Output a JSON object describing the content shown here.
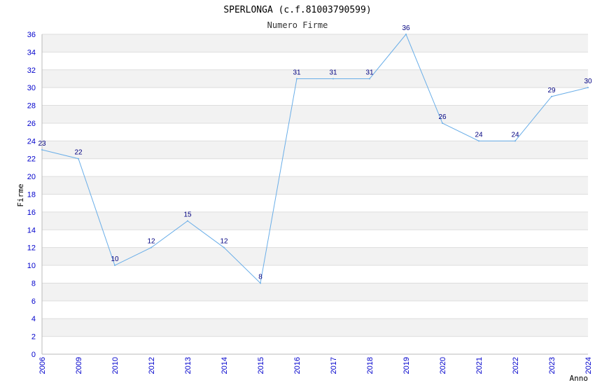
{
  "chart_data": {
    "type": "line",
    "title": "SPERLONGA (c.f.81003790599)",
    "subtitle": "Numero Firme",
    "xlabel": "Anno",
    "ylabel": "Firme",
    "categories": [
      "2006",
      "2009",
      "2010",
      "2012",
      "2013",
      "2014",
      "2015",
      "2016",
      "2017",
      "2018",
      "2019",
      "2020",
      "2021",
      "2022",
      "2023",
      "2024"
    ],
    "series": [
      {
        "values": [
          23,
          22,
          10,
          12,
          15,
          12,
          8,
          31,
          31,
          31,
          36,
          26,
          24,
          24,
          29,
          30
        ]
      }
    ],
    "ylim": [
      0,
      36
    ],
    "yticks": [
      0,
      2,
      4,
      6,
      8,
      10,
      12,
      14,
      16,
      18,
      20,
      22,
      24,
      26,
      28,
      30,
      32,
      34,
      36
    ],
    "grid": "horizontal alternating bands",
    "colors": {
      "line": "#6aaee8",
      "band": "#f2f2f2",
      "tick_text": "#0000cc",
      "label_text": "#000080",
      "grid": "#dddddd"
    }
  }
}
